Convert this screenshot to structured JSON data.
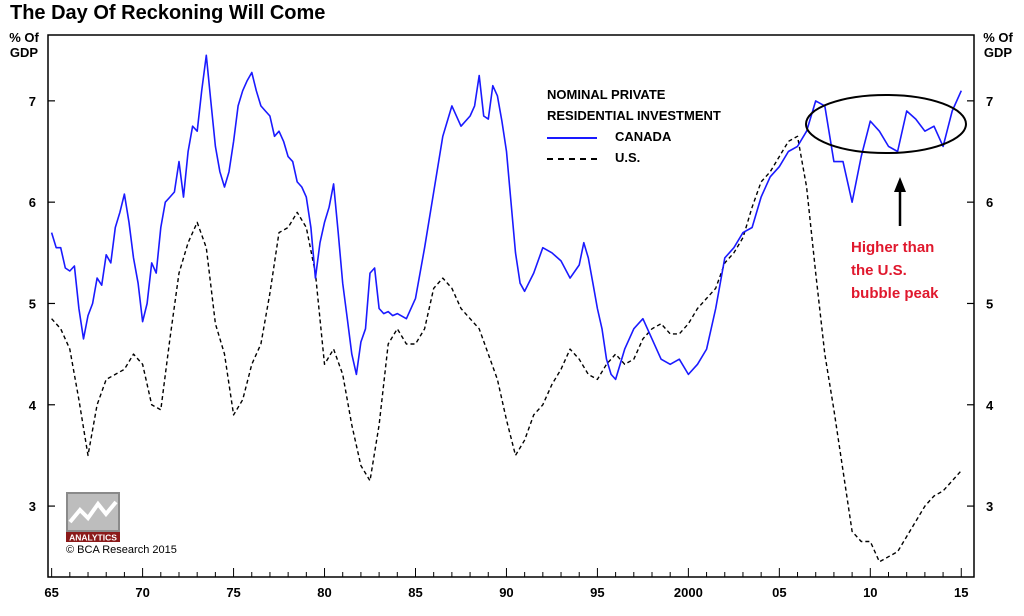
{
  "chart_data": {
    "type": "line",
    "title": "The Day Of Reckoning Will Come",
    "ylabel_left": "% Of GDP",
    "ylabel_right": "% Of GDP",
    "y_ticks": [
      3,
      4,
      5,
      6,
      7
    ],
    "ylim": [
      2.3,
      7.65
    ],
    "x_ticks": [
      1965,
      1970,
      1975,
      1980,
      1985,
      1990,
      1995,
      2000,
      2005,
      2010,
      2015
    ],
    "x_tick_labels": [
      "65",
      "70",
      "75",
      "80",
      "85",
      "90",
      "95",
      "2000",
      "05",
      "10",
      "15"
    ],
    "xlim": [
      1964.8,
      2015.7
    ],
    "legend_title": [
      "NOMINAL PRIVATE",
      "RESIDENTIAL INVESTMENT"
    ],
    "legend_position": "top-center-right",
    "grid": false,
    "series": [
      {
        "name": "CANADA",
        "color": "#1a1aff",
        "style": "solid",
        "x": [
          1965.0,
          1965.25,
          1965.5,
          1965.75,
          1966.0,
          1966.25,
          1966.5,
          1966.75,
          1967.0,
          1967.25,
          1967.5,
          1967.75,
          1968.0,
          1968.25,
          1968.5,
          1968.75,
          1969.0,
          1969.25,
          1969.5,
          1969.75,
          1970.0,
          1970.25,
          1970.5,
          1970.75,
          1971.0,
          1971.25,
          1971.5,
          1971.75,
          1972.0,
          1972.25,
          1972.5,
          1972.75,
          1973.0,
          1973.25,
          1973.5,
          1973.75,
          1974.0,
          1974.25,
          1974.5,
          1974.75,
          1975.0,
          1975.25,
          1975.5,
          1975.75,
          1976.0,
          1976.25,
          1976.5,
          1976.75,
          1977.0,
          1977.25,
          1977.5,
          1977.75,
          1978.0,
          1978.25,
          1978.5,
          1978.75,
          1979.0,
          1979.25,
          1979.5,
          1979.75,
          1980.0,
          1980.25,
          1980.5,
          1980.75,
          1981.0,
          1981.25,
          1981.5,
          1981.75,
          1982.0,
          1982.25,
          1982.5,
          1982.75,
          1983.0,
          1983.25,
          1983.5,
          1983.75,
          1984.0,
          1984.5,
          1985.0,
          1985.5,
          1986.0,
          1986.5,
          1987.0,
          1987.5,
          1988.0,
          1988.25,
          1988.5,
          1988.75,
          1989.0,
          1989.25,
          1989.5,
          1989.75,
          1990.0,
          1990.25,
          1990.5,
          1990.75,
          1991.0,
          1991.5,
          1992.0,
          1992.5,
          1993.0,
          1993.5,
          1994.0,
          1994.25,
          1994.5,
          1994.75,
          1995.0,
          1995.25,
          1995.5,
          1995.75,
          1996.0,
          1996.5,
          1997.0,
          1997.5,
          1998.0,
          1998.5,
          1999.0,
          1999.5,
          2000.0,
          2000.5,
          2001.0,
          2001.5,
          2002.0,
          2002.5,
          2003.0,
          2003.5,
          2004.0,
          2004.5,
          2005.0,
          2005.5,
          2006.0,
          2006.5,
          2007.0,
          2007.5,
          2008.0,
          2008.5,
          2009.0,
          2009.5,
          2010.0,
          2010.5,
          2011.0,
          2011.5,
          2012.0,
          2012.5,
          2013.0,
          2013.5,
          2014.0,
          2014.5,
          2015.0
        ],
        "values": [
          5.7,
          5.55,
          5.55,
          5.35,
          5.32,
          5.37,
          4.95,
          4.65,
          4.88,
          5.0,
          5.25,
          5.18,
          5.48,
          5.4,
          5.75,
          5.9,
          6.08,
          5.8,
          5.45,
          5.2,
          4.82,
          5.0,
          5.4,
          5.3,
          5.75,
          6.0,
          6.05,
          6.1,
          6.4,
          6.05,
          6.5,
          6.75,
          6.7,
          7.1,
          7.45,
          7.0,
          6.55,
          6.3,
          6.15,
          6.3,
          6.6,
          6.95,
          7.1,
          7.2,
          7.28,
          7.1,
          6.95,
          6.9,
          6.85,
          6.65,
          6.7,
          6.6,
          6.45,
          6.4,
          6.2,
          6.15,
          6.05,
          5.75,
          5.25,
          5.6,
          5.8,
          5.95,
          6.18,
          5.7,
          5.2,
          4.85,
          4.5,
          4.3,
          4.62,
          4.75,
          5.3,
          5.35,
          4.95,
          4.9,
          4.92,
          4.88,
          4.9,
          4.85,
          5.05,
          5.55,
          6.1,
          6.65,
          6.95,
          6.75,
          6.85,
          6.95,
          7.25,
          6.85,
          6.82,
          7.15,
          7.05,
          6.8,
          6.5,
          6.0,
          5.5,
          5.2,
          5.12,
          5.3,
          5.55,
          5.5,
          5.42,
          5.25,
          5.38,
          5.6,
          5.45,
          5.2,
          4.95,
          4.75,
          4.45,
          4.3,
          4.25,
          4.55,
          4.75,
          4.85,
          4.65,
          4.45,
          4.4,
          4.45,
          4.3,
          4.4,
          4.55,
          4.95,
          5.45,
          5.55,
          5.7,
          5.75,
          6.05,
          6.25,
          6.35,
          6.5,
          6.55,
          6.7,
          7.0,
          6.95,
          6.4,
          6.4,
          6.0,
          6.45,
          6.8,
          6.7,
          6.55,
          6.5,
          6.9,
          6.82,
          6.7,
          6.75,
          6.55,
          6.9,
          7.1
        ]
      },
      {
        "name": "U.S.",
        "color": "#000000",
        "style": "dashed",
        "x": [
          1965.0,
          1965.5,
          1966.0,
          1966.5,
          1967.0,
          1967.5,
          1968.0,
          1968.5,
          1969.0,
          1969.5,
          1970.0,
          1970.5,
          1971.0,
          1971.5,
          1972.0,
          1972.5,
          1973.0,
          1973.5,
          1974.0,
          1974.5,
          1975.0,
          1975.5,
          1976.0,
          1976.5,
          1977.0,
          1977.5,
          1978.0,
          1978.5,
          1979.0,
          1979.5,
          1980.0,
          1980.5,
          1981.0,
          1981.5,
          1982.0,
          1982.5,
          1983.0,
          1983.5,
          1984.0,
          1984.5,
          1985.0,
          1985.5,
          1986.0,
          1986.5,
          1987.0,
          1987.5,
          1988.0,
          1988.5,
          1989.0,
          1989.5,
          1990.0,
          1990.5,
          1991.0,
          1991.5,
          1992.0,
          1992.5,
          1993.0,
          1993.5,
          1994.0,
          1994.5,
          1995.0,
          1995.5,
          1996.0,
          1996.5,
          1997.0,
          1997.5,
          1998.0,
          1998.5,
          1999.0,
          1999.5,
          2000.0,
          2000.5,
          2001.0,
          2001.5,
          2002.0,
          2002.5,
          2003.0,
          2003.5,
          2004.0,
          2004.5,
          2005.0,
          2005.5,
          2006.0,
          2006.5,
          2007.0,
          2007.5,
          2008.0,
          2008.5,
          2009.0,
          2009.5,
          2010.0,
          2010.5,
          2011.0,
          2011.5,
          2012.0,
          2012.5,
          2013.0,
          2013.5,
          2014.0,
          2014.5,
          2015.0
        ],
        "values": [
          4.85,
          4.75,
          4.55,
          4.05,
          3.5,
          4.0,
          4.25,
          4.3,
          4.35,
          4.5,
          4.4,
          4.0,
          3.95,
          4.65,
          5.3,
          5.6,
          5.8,
          5.55,
          4.8,
          4.5,
          3.9,
          4.05,
          4.4,
          4.6,
          5.1,
          5.7,
          5.75,
          5.9,
          5.75,
          5.3,
          4.4,
          4.55,
          4.3,
          3.8,
          3.4,
          3.25,
          3.8,
          4.6,
          4.75,
          4.6,
          4.6,
          4.75,
          5.15,
          5.25,
          5.15,
          4.95,
          4.85,
          4.75,
          4.5,
          4.25,
          3.85,
          3.5,
          3.65,
          3.9,
          4.0,
          4.2,
          4.35,
          4.55,
          4.45,
          4.3,
          4.25,
          4.4,
          4.5,
          4.4,
          4.45,
          4.65,
          4.75,
          4.8,
          4.7,
          4.7,
          4.8,
          4.95,
          5.05,
          5.15,
          5.4,
          5.5,
          5.65,
          5.95,
          6.2,
          6.3,
          6.45,
          6.6,
          6.65,
          6.15,
          5.3,
          4.5,
          3.95,
          3.35,
          2.75,
          2.65,
          2.65,
          2.45,
          2.5,
          2.55,
          2.7,
          2.85,
          3.0,
          3.1,
          3.15,
          3.25,
          3.35
        ]
      }
    ],
    "annotations": [
      {
        "text": [
          "Higher than",
          "the U.S.",
          "bubble peak"
        ],
        "color": "#e0182d"
      }
    ]
  },
  "logo_text": "ANALYTICS",
  "copyright": "© BCA Research 2015"
}
